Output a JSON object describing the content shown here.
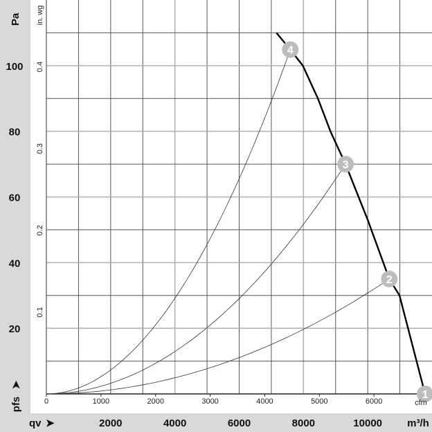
{
  "chart_data": {
    "type": "line",
    "xlabel": "qv",
    "xunit": "m³/h",
    "x2unit": "cfm",
    "ylabel": "pfs",
    "yunit": "Pa",
    "y2unit": "in. wg",
    "xlim": [
      0,
      12000
    ],
    "ylim": [
      0,
      120
    ],
    "grid": true,
    "x_ticks": [
      "2000",
      "4000",
      "6000",
      "8000",
      "10000"
    ],
    "x_tick_values": [
      2000,
      4000,
      6000,
      8000,
      10000
    ],
    "x2_ticks": [
      "0",
      "1000",
      "2000",
      "3000",
      "4000",
      "5000",
      "6000"
    ],
    "y_ticks": [
      "20",
      "40",
      "60",
      "80",
      "100"
    ],
    "y_tick_values": [
      20,
      40,
      60,
      80,
      100
    ],
    "y2_ticks": [
      "0.1",
      "0.2",
      "0.3",
      "0.4"
    ],
    "fan_curve": {
      "x": [
        7160,
        7590,
        7980,
        8450,
        8840,
        9310,
        10000,
        10670,
        10990,
        11785
      ],
      "y": [
        110,
        104.9,
        100,
        90,
        80,
        70,
        53,
        35,
        30,
        0
      ]
    },
    "operating_points": [
      {
        "label": "1",
        "x": 11785,
        "y": 0
      },
      {
        "label": "2",
        "x": 10670,
        "y": 35
      },
      {
        "label": "3",
        "x": 9310,
        "y": 70
      },
      {
        "label": "4",
        "x": 7590,
        "y": 104.9
      }
    ],
    "colors": {
      "band": "#d9d9d9",
      "marker": "#bdbdbd",
      "grid": "#555555",
      "grid_light": "#b0b0b0"
    }
  }
}
